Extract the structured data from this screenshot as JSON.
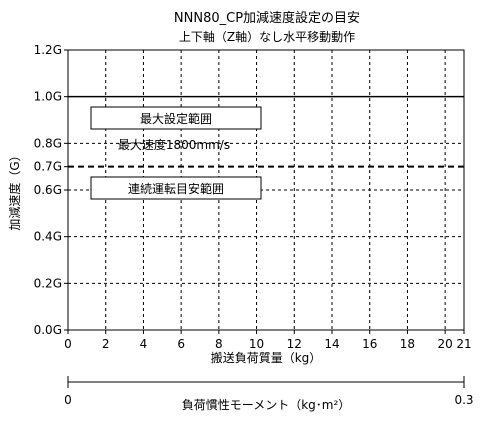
{
  "chart_data": {
    "type": "line",
    "title": "NNN80_CP加減速度設定の目安",
    "subtitle": "上下軸（Z軸）なし水平移動動作",
    "xlabel": "搬送負荷質量（kg）",
    "ylabel": "加減速度（G）",
    "x_ticks": [
      "0",
      "2",
      "4",
      "6",
      "8",
      "10",
      "12",
      "14",
      "16",
      "18",
      "20",
      "21"
    ],
    "x_tick_values": [
      0,
      2,
      4,
      6,
      8,
      10,
      12,
      14,
      16,
      18,
      20,
      21
    ],
    "y_ticks": [
      "0.0G",
      "0.2G",
      "0.4G",
      "0.6G",
      "0.7G",
      "0.8G",
      "1.0G",
      "1.2G"
    ],
    "y_tick_values": [
      0.0,
      0.2,
      0.4,
      0.6,
      0.7,
      0.8,
      1.0,
      1.2
    ],
    "xlim": [
      0,
      21
    ],
    "ylim": [
      0,
      1.2
    ],
    "grid": true,
    "series": [
      {
        "style": "solid",
        "x": [
          0,
          21
        ],
        "y": [
          1.0,
          1.0
        ]
      },
      {
        "style": "dashed",
        "x": [
          0,
          21
        ],
        "y": [
          0.7,
          0.7
        ]
      }
    ],
    "annotations": {
      "max_setting_range": "最大設定範囲",
      "max_speed": "最大速度1800mm/s",
      "continuous_operation_range": "連続運転目安範囲"
    },
    "secondary_axis": {
      "label": "負荷慣性モーメント（kg･m²）",
      "min_label": "0",
      "max_label": "0.3",
      "range": [
        0,
        0.3
      ]
    }
  }
}
